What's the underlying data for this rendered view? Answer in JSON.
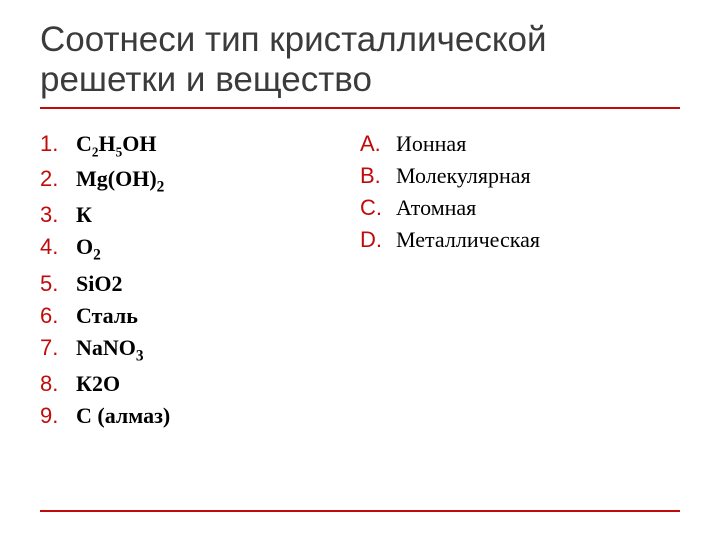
{
  "colors": {
    "accent": "#c10b0b",
    "text": "#3b3b3b"
  },
  "title": "Соотнеси тип кристаллической решетки и вещество",
  "left": {
    "items": [
      {
        "marker": "1.",
        "parts": [
          {
            "t": "С",
            "sub": false
          },
          {
            "t": "2",
            "sub": true,
            "sm": true
          },
          {
            "t": "Н",
            "sub": false
          },
          {
            "t": "5",
            "sub": true,
            "sm": true
          },
          {
            "t": "ОН",
            "sub": false
          }
        ]
      },
      {
        "marker": "2.",
        "parts": [
          {
            "t": "Мg(ОН)",
            "sub": false
          },
          {
            "t": "2",
            "sub": true
          }
        ]
      },
      {
        "marker": "3.",
        "parts": [
          {
            "t": "К",
            "sub": false
          }
        ]
      },
      {
        "marker": "4.",
        "parts": [
          {
            "t": "О",
            "sub": false
          },
          {
            "t": "2",
            "sub": true
          }
        ]
      },
      {
        "marker": "5.",
        "parts": [
          {
            "t": "SiO2",
            "sub": false
          }
        ]
      },
      {
        "marker": "6.",
        "parts": [
          {
            "t": "Сталь",
            "sub": false
          }
        ]
      },
      {
        "marker": "7.",
        "parts": [
          {
            "t": "NаNО",
            "sub": false
          },
          {
            "t": "3",
            "sub": true
          }
        ]
      },
      {
        "marker": "8.",
        "parts": [
          {
            "t": "К2О",
            "sub": false
          }
        ]
      },
      {
        "marker": "9.",
        "parts": [
          {
            "t": "С (алмаз)",
            "sub": false
          }
        ]
      }
    ]
  },
  "right": {
    "items": [
      {
        "marker": "A.",
        "text": "Ионная"
      },
      {
        "marker": "B.",
        "text": "Молекулярная"
      },
      {
        "marker": "C.",
        "text": "Атомная"
      },
      {
        "marker": "D.",
        "text": "Металлическая"
      }
    ]
  }
}
